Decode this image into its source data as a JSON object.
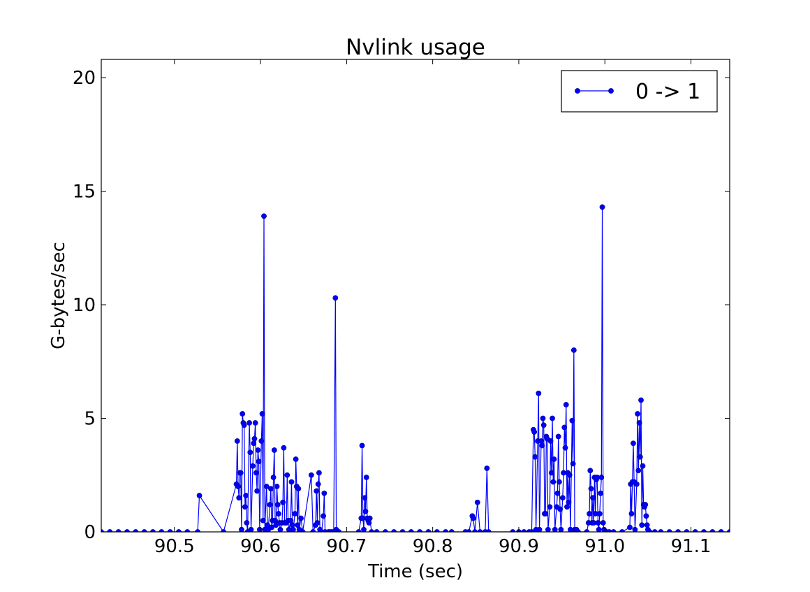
{
  "chart_data": {
    "type": "line",
    "title": "Nvlink usage",
    "xlabel": "Time (sec)",
    "ylabel": "G-bytes/sec",
    "xlim": [
      90.415,
      91.145
    ],
    "ylim": [
      0,
      20.8
    ],
    "xticks": [
      90.5,
      90.6,
      90.7,
      90.8,
      90.9,
      91.0,
      91.1
    ],
    "xtick_labels": [
      "90.5",
      "90.6",
      "90.7",
      "90.8",
      "90.9",
      "91.0",
      "91.1"
    ],
    "yticks": [
      0,
      5,
      10,
      15,
      20
    ],
    "ytick_labels": [
      "0",
      "5",
      "10",
      "15",
      "20"
    ],
    "grid": false,
    "legend_position": "top-right",
    "series": [
      {
        "name": "0 -> 1",
        "color": "#0000ff",
        "marker": "circle",
        "points": [
          [
            90.415,
            0
          ],
          [
            90.425,
            0
          ],
          [
            90.435,
            0
          ],
          [
            90.445,
            0
          ],
          [
            90.455,
            0
          ],
          [
            90.465,
            0
          ],
          [
            90.475,
            0
          ],
          [
            90.485,
            0
          ],
          [
            90.495,
            0
          ],
          [
            90.505,
            0
          ],
          [
            90.515,
            0
          ],
          [
            90.527,
            0
          ],
          [
            90.529,
            1.6
          ],
          [
            90.557,
            0
          ],
          [
            90.572,
            2.1
          ],
          [
            90.573,
            4.0
          ],
          [
            90.574,
            2.0
          ],
          [
            90.575,
            1.5
          ],
          [
            90.576,
            2.6
          ],
          [
            90.577,
            2.6
          ],
          [
            90.578,
            0.1
          ],
          [
            90.579,
            5.2
          ],
          [
            90.58,
            4.8
          ],
          [
            90.581,
            4.7
          ],
          [
            90.582,
            1.1
          ],
          [
            90.583,
            1.6
          ],
          [
            90.584,
            0.4
          ],
          [
            90.585,
            0
          ],
          [
            90.587,
            4.8
          ],
          [
            90.588,
            3.5
          ],
          [
            90.589,
            0.1
          ],
          [
            90.591,
            2.9
          ],
          [
            90.592,
            3.9
          ],
          [
            90.593,
            4.1
          ],
          [
            90.594,
            4.8
          ],
          [
            90.595,
            2.6
          ],
          [
            90.596,
            1.8
          ],
          [
            90.597,
            3.6
          ],
          [
            90.598,
            3.1
          ],
          [
            90.599,
            0.1
          ],
          [
            90.601,
            4.0
          ],
          [
            90.602,
            5.2
          ],
          [
            90.603,
            0.5
          ],
          [
            90.604,
            13.9
          ],
          [
            90.605,
            0.1
          ],
          [
            90.607,
            2.0
          ],
          [
            90.608,
            0.3
          ],
          [
            90.609,
            0.1
          ],
          [
            90.611,
            1.2
          ],
          [
            90.612,
            1.9
          ],
          [
            90.613,
            0.2
          ],
          [
            90.614,
            0.5
          ],
          [
            90.615,
            2.4
          ],
          [
            90.616,
            3.6
          ],
          [
            90.617,
            0.5
          ],
          [
            90.618,
            0.3
          ],
          [
            90.619,
            2.0
          ],
          [
            90.62,
            1.2
          ],
          [
            90.621,
            0.8
          ],
          [
            90.622,
            0.4
          ],
          [
            90.623,
            0.1
          ],
          [
            90.625,
            0.4
          ],
          [
            90.626,
            1.3
          ],
          [
            90.627,
            3.7
          ],
          [
            90.628,
            0.4
          ],
          [
            90.63,
            0.4
          ],
          [
            90.631,
            2.5
          ],
          [
            90.632,
            0.5
          ],
          [
            90.633,
            0.1
          ],
          [
            90.635,
            0.5
          ],
          [
            90.636,
            2.2
          ],
          [
            90.637,
            0.3
          ],
          [
            90.638,
            0.1
          ],
          [
            90.64,
            0.8
          ],
          [
            90.641,
            3.2
          ],
          [
            90.642,
            2.0
          ],
          [
            90.643,
            0.3
          ],
          [
            90.644,
            1.9
          ],
          [
            90.645,
            0.1
          ],
          [
            90.647,
            0.6
          ],
          [
            90.649,
            0
          ],
          [
            90.659,
            2.5
          ],
          [
            90.661,
            0
          ],
          [
            90.664,
            0.3
          ],
          [
            90.665,
            1.8
          ],
          [
            90.666,
            0.4
          ],
          [
            90.667,
            2.1
          ],
          [
            90.668,
            2.6
          ],
          [
            90.669,
            0.1
          ],
          [
            90.671,
            0
          ],
          [
            90.673,
            0.7
          ],
          [
            90.674,
            1.7
          ],
          [
            90.675,
            0
          ],
          [
            90.679,
            0
          ],
          [
            90.681,
            0
          ],
          [
            90.683,
            0
          ],
          [
            90.685,
            0
          ],
          [
            90.687,
            10.3
          ],
          [
            90.688,
            0.1
          ],
          [
            90.691,
            0
          ],
          [
            90.714,
            0
          ],
          [
            90.717,
            0.6
          ],
          [
            90.718,
            3.8
          ],
          [
            90.719,
            0.6
          ],
          [
            90.72,
            0.1
          ],
          [
            90.721,
            1.5
          ],
          [
            90.722,
            0.9
          ],
          [
            90.723,
            2.4
          ],
          [
            90.724,
            0.6
          ],
          [
            90.725,
            0.5
          ],
          [
            90.726,
            0.4
          ],
          [
            90.727,
            0.6
          ],
          [
            90.729,
            0
          ],
          [
            90.735,
            0
          ],
          [
            90.745,
            0
          ],
          [
            90.755,
            0
          ],
          [
            90.765,
            0
          ],
          [
            90.775,
            0
          ],
          [
            90.785,
            0
          ],
          [
            90.795,
            0
          ],
          [
            90.805,
            0
          ],
          [
            90.815,
            0
          ],
          [
            90.822,
            0
          ],
          [
            90.838,
            0
          ],
          [
            90.842,
            0
          ],
          [
            90.846,
            0.7
          ],
          [
            90.847,
            0.6
          ],
          [
            90.849,
            0
          ],
          [
            90.852,
            1.3
          ],
          [
            90.855,
            0
          ],
          [
            90.861,
            0
          ],
          [
            90.863,
            2.8
          ],
          [
            90.865,
            0
          ],
          [
            90.893,
            0
          ],
          [
            90.9,
            0
          ],
          [
            90.906,
            0
          ],
          [
            90.912,
            0
          ],
          [
            90.915,
            0
          ],
          [
            90.917,
            4.5
          ],
          [
            90.918,
            4.4
          ],
          [
            90.919,
            3.3
          ],
          [
            90.92,
            0.1
          ],
          [
            90.922,
            4.0
          ],
          [
            90.923,
            6.1
          ],
          [
            90.924,
            0.1
          ],
          [
            90.926,
            4.0
          ],
          [
            90.927,
            3.8
          ],
          [
            90.928,
            5.0
          ],
          [
            90.929,
            4.7
          ],
          [
            90.93,
            0.8
          ],
          [
            90.931,
            0.8
          ],
          [
            90.932,
            4.2
          ],
          [
            90.933,
            4.1
          ],
          [
            90.934,
            0.1
          ],
          [
            90.936,
            1.1
          ],
          [
            90.937,
            4.0
          ],
          [
            90.938,
            2.6
          ],
          [
            90.939,
            5.0
          ],
          [
            90.94,
            2.2
          ],
          [
            90.941,
            3.2
          ],
          [
            90.942,
            0.1
          ],
          [
            90.944,
            1.1
          ],
          [
            90.945,
            1.7
          ],
          [
            90.946,
            4.2
          ],
          [
            90.947,
            2.2
          ],
          [
            90.948,
            1.0
          ],
          [
            90.949,
            0.1
          ],
          [
            90.951,
            1.5
          ],
          [
            90.952,
            2.6
          ],
          [
            90.953,
            4.6
          ],
          [
            90.954,
            3.7
          ],
          [
            90.955,
            5.6
          ],
          [
            90.956,
            1.1
          ],
          [
            90.957,
            2.6
          ],
          [
            90.958,
            1.3
          ],
          [
            90.959,
            2.5
          ],
          [
            90.96,
            0.1
          ],
          [
            90.962,
            4.9
          ],
          [
            90.963,
            3.0
          ],
          [
            90.964,
            8.0
          ],
          [
            90.965,
            0.1
          ],
          [
            90.967,
            0.1
          ],
          [
            90.969,
            0
          ],
          [
            90.979,
            0
          ],
          [
            90.981,
            0.4
          ],
          [
            90.982,
            0.8
          ],
          [
            90.983,
            2.7
          ],
          [
            90.984,
            1.9
          ],
          [
            90.985,
            0.4
          ],
          [
            90.986,
            1.5
          ],
          [
            90.987,
            0.4
          ],
          [
            90.988,
            2.4
          ],
          [
            90.989,
            0.8
          ],
          [
            90.99,
            2.3
          ],
          [
            90.991,
            2.4
          ],
          [
            90.992,
            0.4
          ],
          [
            90.993,
            0.1
          ],
          [
            90.994,
            0.8
          ],
          [
            90.995,
            1.7
          ],
          [
            90.996,
            2.4
          ],
          [
            90.997,
            14.3
          ],
          [
            90.998,
            0.4
          ],
          [
            90.999,
            0.1
          ],
          [
            91.002,
            0
          ],
          [
            91.005,
            0
          ],
          [
            91.01,
            0
          ],
          [
            91.02,
            0
          ],
          [
            91.029,
            0.2
          ],
          [
            91.03,
            2.1
          ],
          [
            91.031,
            0.8
          ],
          [
            91.032,
            2.2
          ],
          [
            91.033,
            3.9
          ],
          [
            91.034,
            2.2
          ],
          [
            91.035,
            0.1
          ],
          [
            91.037,
            2.1
          ],
          [
            91.038,
            5.2
          ],
          [
            91.039,
            2.7
          ],
          [
            91.04,
            4.8
          ],
          [
            91.041,
            3.3
          ],
          [
            91.042,
            5.8
          ],
          [
            91.043,
            0.3
          ],
          [
            91.044,
            2.9
          ],
          [
            91.045,
            1.2
          ],
          [
            91.046,
            1.1
          ],
          [
            91.047,
            1.2
          ],
          [
            91.048,
            0.7
          ],
          [
            91.049,
            0.3
          ],
          [
            91.05,
            0.1
          ],
          [
            91.052,
            0
          ],
          [
            91.058,
            0
          ],
          [
            91.065,
            0
          ],
          [
            91.075,
            0
          ],
          [
            91.085,
            0
          ],
          [
            91.095,
            0
          ],
          [
            91.105,
            0
          ],
          [
            91.115,
            0
          ],
          [
            91.125,
            0
          ],
          [
            91.135,
            0
          ],
          [
            91.145,
            0
          ]
        ]
      }
    ]
  }
}
